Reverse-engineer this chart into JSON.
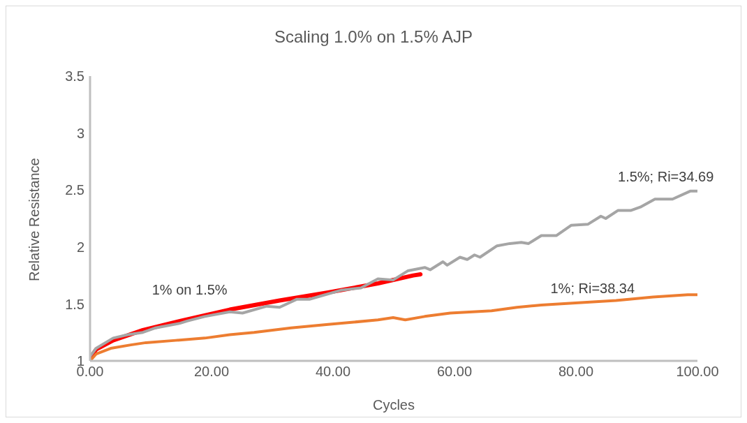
{
  "chart_data": {
    "type": "line",
    "title": "Scaling 1.0% on 1.5% AJP",
    "xlabel": "Cycles",
    "ylabel": "Relative Resistance",
    "xlim": [
      0,
      100
    ],
    "xticks": [
      {
        "value": 0,
        "label": "0.00"
      },
      {
        "value": 20,
        "label": "20.00"
      },
      {
        "value": 40,
        "label": "40.00"
      },
      {
        "value": 60,
        "label": "60.00"
      },
      {
        "value": 80,
        "label": "80.00"
      },
      {
        "value": 100,
        "label": "100.00"
      }
    ],
    "ylim": [
      1,
      3.5
    ],
    "yticks": [
      1,
      1.5,
      2,
      2.5,
      3,
      3.5
    ],
    "grid": false,
    "legend": false,
    "marker": "none",
    "line_style": "solid",
    "series": [
      {
        "name": "1% on 1.5%",
        "color": "#ff0000",
        "x": [
          0,
          1,
          3.8,
          8.7,
          14.8,
          23,
          31.2,
          39.2,
          47.4,
          53.2,
          54.4
        ],
        "values": [
          1.02,
          1.1,
          1.18,
          1.27,
          1.35,
          1.45,
          1.53,
          1.6,
          1.68,
          1.75,
          1.76
        ]
      },
      {
        "name": "1.5%; Ri=34.69",
        "color": "#a5a5a5",
        "x": [
          0,
          1,
          3.8,
          6.2,
          8.7,
          10.8,
          14.8,
          16,
          18.9,
          23,
          25.1,
          29.1,
          31.2,
          34,
          36.1,
          38,
          41.3,
          44.6,
          47.4,
          49.9,
          52.3,
          55.1,
          56,
          58.1,
          58.8,
          60.9,
          62.1,
          63.3,
          64.2,
          67,
          69.1,
          71,
          72.2,
          74.3,
          76.8,
          79.2,
          82,
          84.1,
          84.9,
          86.9,
          89,
          90.6,
          93,
          95.1,
          95.9,
          98.8,
          100
        ],
        "values": [
          1.04,
          1.11,
          1.2,
          1.23,
          1.25,
          1.29,
          1.33,
          1.35,
          1.39,
          1.43,
          1.42,
          1.48,
          1.47,
          1.54,
          1.54,
          1.57,
          1.62,
          1.64,
          1.72,
          1.71,
          1.79,
          1.82,
          1.8,
          1.87,
          1.84,
          1.91,
          1.89,
          1.93,
          1.91,
          2.01,
          2.03,
          2.04,
          2.03,
          2.1,
          2.1,
          2.19,
          2.2,
          2.27,
          2.25,
          2.32,
          2.32,
          2.35,
          2.42,
          2.42,
          2.42,
          2.49,
          2.49
        ]
      },
      {
        "name": "1%; Ri=38.34",
        "color": "#ed7d31",
        "x": [
          0,
          1,
          3.4,
          6.7,
          9.2,
          14.1,
          18.9,
          23,
          27,
          33.1,
          39.2,
          43.4,
          47.4,
          49.9,
          51.9,
          55.1,
          59.3,
          66.1,
          70.3,
          74.3,
          80.4,
          86.6,
          92.7,
          98.4,
          100
        ],
        "values": [
          1.0,
          1.06,
          1.11,
          1.14,
          1.16,
          1.18,
          1.2,
          1.23,
          1.25,
          1.29,
          1.32,
          1.34,
          1.36,
          1.38,
          1.36,
          1.39,
          1.42,
          1.44,
          1.47,
          1.49,
          1.51,
          1.53,
          1.56,
          1.58,
          1.58
        ]
      }
    ]
  }
}
